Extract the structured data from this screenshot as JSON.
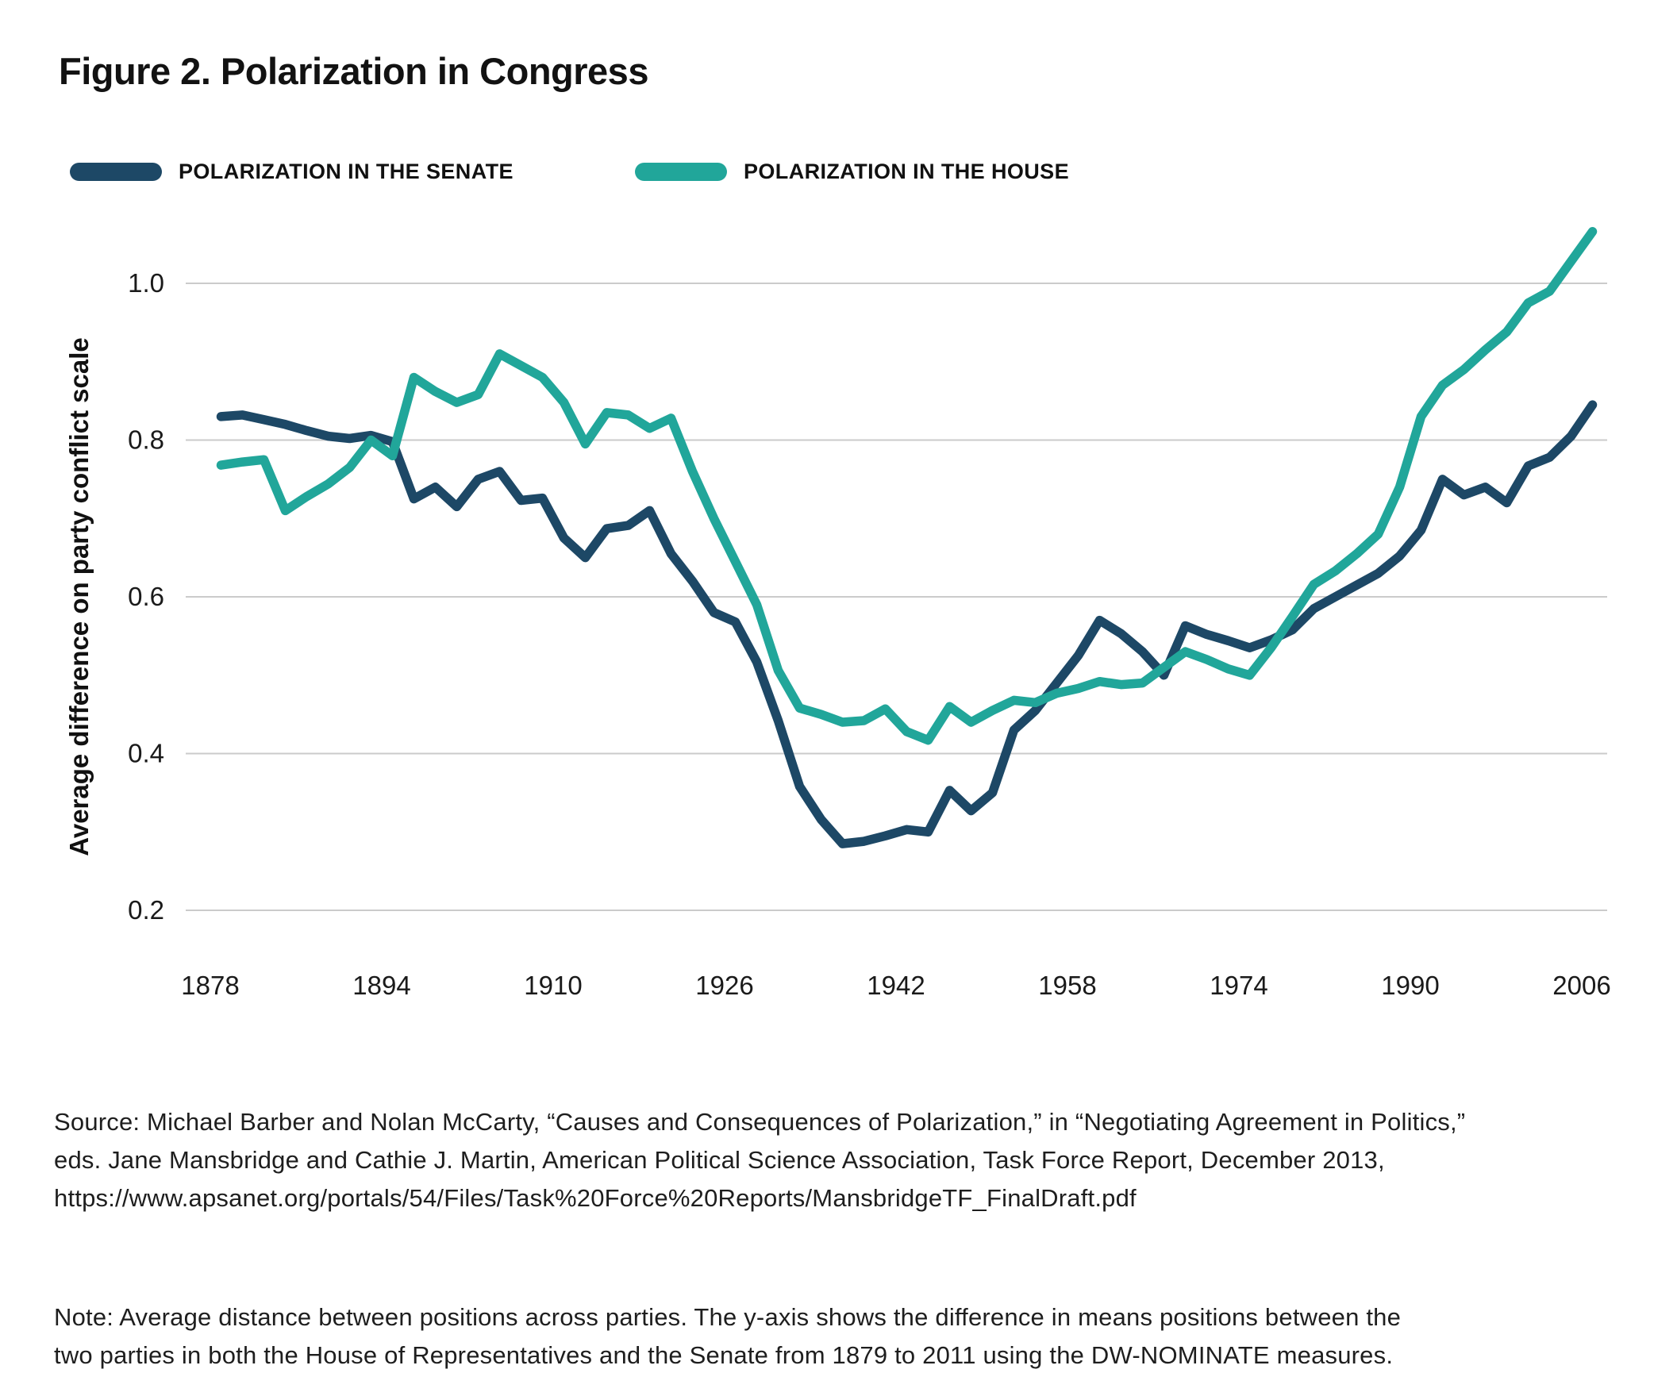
{
  "title": "Figure 2. Polarization in Congress",
  "legend": {
    "senate": {
      "label": "POLARIZATION IN THE SENATE",
      "color": "#1d4866"
    },
    "house": {
      "label": "POLARIZATION IN THE HOUSE",
      "color": "#21a69a"
    }
  },
  "colors": {
    "senate_line": "#1d4866",
    "house_line": "#21a69a",
    "gridline": "#cbcbcb",
    "text": "#1a1a1a"
  },
  "chart_data": {
    "type": "line",
    "title": "Figure 2. Polarization in Congress",
    "xlabel": "",
    "ylabel": "Average difference on party conflict scale",
    "x_ticks": [
      1878,
      1894,
      1910,
      1926,
      1942,
      1958,
      1974,
      1990,
      2006
    ],
    "y_ticks": [
      1.0,
      0.8,
      0.6,
      0.4,
      0.2
    ],
    "y_tick_labels": [
      "1.0",
      "0.8",
      "0.6",
      "0.4",
      "0.2"
    ],
    "xlim": [
      1878,
      2012
    ],
    "ylim": [
      0.2,
      1.1
    ],
    "grid": "horizontal",
    "legend_position": "top-left",
    "x": [
      1879,
      1881,
      1883,
      1885,
      1887,
      1889,
      1891,
      1893,
      1895,
      1897,
      1899,
      1901,
      1903,
      1905,
      1907,
      1909,
      1911,
      1913,
      1915,
      1917,
      1919,
      1921,
      1923,
      1925,
      1927,
      1929,
      1931,
      1933,
      1935,
      1937,
      1939,
      1941,
      1943,
      1945,
      1947,
      1949,
      1951,
      1953,
      1955,
      1957,
      1959,
      1961,
      1963,
      1965,
      1967,
      1969,
      1971,
      1973,
      1975,
      1977,
      1979,
      1981,
      1983,
      1985,
      1987,
      1989,
      1991,
      1993,
      1995,
      1997,
      1999,
      2001,
      2003,
      2005,
      2007
    ],
    "series": [
      {
        "name": "Polarization in the Senate",
        "color": "#1d4866",
        "values": [
          0.83,
          0.832,
          0.826,
          0.82,
          0.812,
          0.805,
          0.802,
          0.806,
          0.798,
          0.725,
          0.74,
          0.715,
          0.75,
          0.76,
          0.723,
          0.726,
          0.675,
          0.65,
          0.687,
          0.691,
          0.71,
          0.655,
          0.62,
          0.58,
          0.568,
          0.517,
          0.442,
          0.358,
          0.316,
          0.285,
          0.288,
          0.295,
          0.303,
          0.3,
          0.353,
          0.327,
          0.35,
          0.43,
          0.455,
          0.49,
          0.525,
          0.57,
          0.553,
          0.53,
          0.5,
          0.563,
          0.552,
          0.544,
          0.535,
          0.545,
          0.558,
          0.585,
          0.6,
          0.615,
          0.63,
          0.652,
          0.685,
          0.75,
          0.73,
          0.74,
          0.72,
          0.767,
          0.778,
          0.805,
          0.845
        ]
      },
      {
        "name": "Polarization in the House",
        "color": "#21a69a",
        "values": [
          0.768,
          0.772,
          0.775,
          0.71,
          0.728,
          0.744,
          0.765,
          0.8,
          0.78,
          0.88,
          0.862,
          0.848,
          0.858,
          0.91,
          0.895,
          0.88,
          0.848,
          0.795,
          0.835,
          0.832,
          0.815,
          0.828,
          0.76,
          0.7,
          0.645,
          0.59,
          0.506,
          0.458,
          0.45,
          0.44,
          0.442,
          0.457,
          0.428,
          0.417,
          0.46,
          0.44,
          0.455,
          0.468,
          0.465,
          0.477,
          0.483,
          0.492,
          0.488,
          0.49,
          0.51,
          0.53,
          0.52,
          0.508,
          0.5,
          0.535,
          0.575,
          0.616,
          0.633,
          0.655,
          0.68,
          0.74,
          0.83,
          0.87,
          0.89,
          0.915,
          0.938,
          0.975,
          0.99,
          1.028,
          1.066
        ]
      }
    ]
  },
  "source": {
    "lines": [
      "Source: Michael Barber and Nolan McCarty, “Causes and Consequences of Polarization,” in “Negotiating Agreement in Politics,”",
      "eds. Jane Mansbridge and Cathie J. Martin, American Political Science Association, Task Force Report, December 2013,",
      "https://www.apsanet.org/portals/54/Files/Task%20Force%20Reports/MansbridgeTF_FinalDraft.pdf"
    ]
  },
  "note": {
    "lines": [
      "Note: Average distance between positions across parties. The y-axis shows the difference in means positions between the",
      "two parties in both the House of Representatives and the Senate from 1879 to 2011 using the DW-NOMINATE measures."
    ]
  }
}
